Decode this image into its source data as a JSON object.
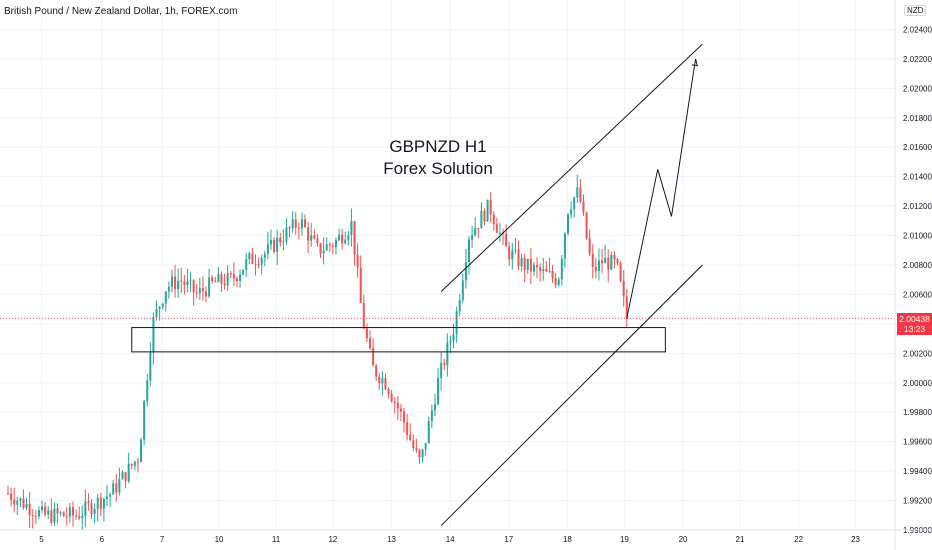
{
  "header": {
    "symbol_line": "British Pound / New Zealand Dollar, 1h, FOREX.com"
  },
  "currency_label": "NZD",
  "annotation": {
    "line1": "GBPNZD H1",
    "line2": "Forex Solution"
  },
  "last_price": {
    "value": "2.00438",
    "countdown": "13:23",
    "color": "#f23645"
  },
  "colors": {
    "up": "#26a69a",
    "down": "#ef5350",
    "line": "#131722",
    "grid": "#f0f3fa"
  },
  "chart_data": {
    "type": "candlestick",
    "title": "British Pound / New Zealand Dollar, 1h, FOREX.com",
    "xlabel": "",
    "ylabel": "",
    "x_ticks": [
      "5",
      "6",
      "7",
      "10",
      "11",
      "12",
      "13",
      "14",
      "17",
      "18",
      "19",
      "20",
      "21",
      "22",
      "23"
    ],
    "y_ticks": [
      "1.99000",
      "1.99200",
      "1.99400",
      "1.99600",
      "1.99800",
      "2.00000",
      "2.00200",
      "2.00400",
      "2.00600",
      "2.00800",
      "2.01000",
      "2.01200",
      "2.01400",
      "2.01600",
      "2.01800",
      "2.02000",
      "2.02200",
      "2.02400"
    ],
    "ylim": [
      1.99,
      2.026
    ],
    "price_path": [
      [
        0,
        1.9925
      ],
      [
        1,
        1.991
      ],
      [
        2,
        1.991
      ],
      [
        3,
        1.9925
      ],
      [
        3.8,
        1.995
      ],
      [
        4.2,
        2.004
      ],
      [
        4.6,
        2.0065
      ],
      [
        5.0,
        2.007
      ],
      [
        5.5,
        2.006
      ],
      [
        6.0,
        2.0068
      ],
      [
        6.5,
        2.007
      ],
      [
        7.0,
        2.0083
      ],
      [
        7.5,
        2.0088
      ],
      [
        8.0,
        2.01
      ],
      [
        8.5,
        2.011
      ],
      [
        9.0,
        2.009
      ],
      [
        9.5,
        2.0095
      ],
      [
        10.0,
        2.0108
      ],
      [
        10.3,
        2.0045
      ],
      [
        10.6,
        2.001
      ],
      [
        11.0,
        2.0
      ],
      [
        11.5,
        1.9975
      ],
      [
        11.8,
        1.9955
      ],
      [
        12.0,
        1.9945
      ],
      [
        12.5,
        2.0
      ],
      [
        13.0,
        2.004
      ],
      [
        13.4,
        2.01
      ],
      [
        14.0,
        2.012
      ],
      [
        14.5,
        2.009
      ],
      [
        15.0,
        2.008
      ],
      [
        15.5,
        2.0075
      ],
      [
        16.0,
        2.007
      ],
      [
        16.3,
        2.012
      ],
      [
        16.6,
        2.013
      ],
      [
        17.0,
        2.0075
      ],
      [
        17.3,
        2.0083
      ],
      [
        17.7,
        2.008
      ],
      [
        18.0,
        2.00438
      ]
    ],
    "annotations": [
      {
        "type": "channel_upper",
        "from": [
          "12.6",
          2.0062
        ],
        "to": [
          "20.2",
          2.023
        ]
      },
      {
        "type": "channel_lower",
        "from": [
          "12.6",
          1.9903
        ],
        "to": [
          "20.2",
          2.008
        ]
      },
      {
        "type": "support_zone",
        "top": 2.00375,
        "bottom": 2.0021
      },
      {
        "type": "projection_path",
        "points": [
          [
            18.0,
            2.00438
          ],
          [
            18.9,
            2.0145
          ],
          [
            19.3,
            2.0113
          ],
          [
            20.0,
            2.022
          ]
        ]
      }
    ]
  }
}
